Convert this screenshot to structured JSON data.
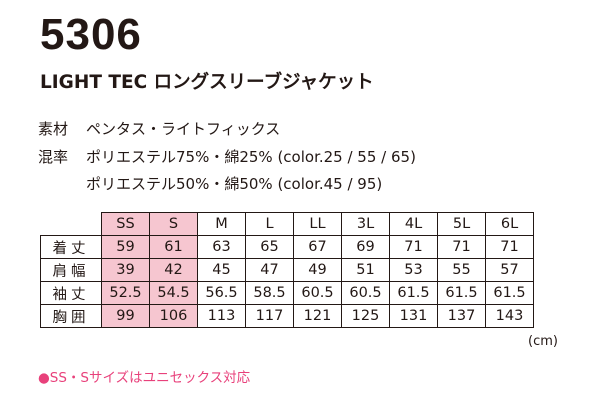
{
  "product": {
    "code": "5306",
    "name": "LIGHT TEC ロングスリーブジャケット"
  },
  "specs": {
    "material_label": "素材",
    "material_value": "ペンタス・ライトフィックス",
    "blend_label": "混率",
    "blend_line1": "ポリエステル75%・綿25% (color.25 / 55 / 65)",
    "blend_line2": "ポリエステル50%・綿50% (color.45 / 95)"
  },
  "size_table": {
    "sizes": [
      "SS",
      "S",
      "M",
      "L",
      "LL",
      "3L",
      "4L",
      "5L",
      "6L"
    ],
    "rows": [
      {
        "label": "着丈",
        "values": [
          "59",
          "61",
          "63",
          "65",
          "67",
          "69",
          "71",
          "71",
          "71"
        ]
      },
      {
        "label": "肩幅",
        "values": [
          "39",
          "42",
          "45",
          "47",
          "49",
          "51",
          "53",
          "55",
          "57"
        ]
      },
      {
        "label": "袖丈",
        "values": [
          "52.5",
          "54.5",
          "56.5",
          "58.5",
          "60.5",
          "60.5",
          "61.5",
          "61.5",
          "61.5"
        ]
      },
      {
        "label": "胸囲",
        "values": [
          "99",
          "106",
          "113",
          "117",
          "121",
          "125",
          "131",
          "137",
          "143"
        ]
      }
    ],
    "unit": "(cm)",
    "highlight_color": "#f6c6d0"
  },
  "note": "●SS・Sサイズはユニセックス対応",
  "note_color": "#e8417b"
}
